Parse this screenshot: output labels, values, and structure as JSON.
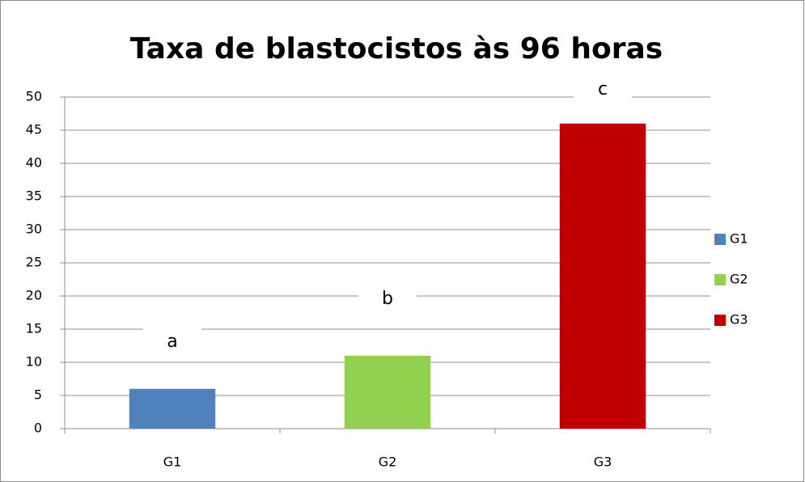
{
  "chart_data": {
    "type": "bar",
    "title": "Taxa de blastocistos às 96 horas",
    "categories": [
      "G1",
      "G2",
      "G3"
    ],
    "values": [
      6,
      11,
      46
    ],
    "colors": [
      "#4f81bd",
      "#92d050",
      "#c00000"
    ],
    "annotations": [
      "a",
      "b",
      "c"
    ],
    "ylim": [
      0,
      50
    ],
    "yticks": [
      0,
      5,
      10,
      15,
      20,
      25,
      30,
      35,
      40,
      45,
      50
    ],
    "grid": true,
    "legend": "right"
  }
}
